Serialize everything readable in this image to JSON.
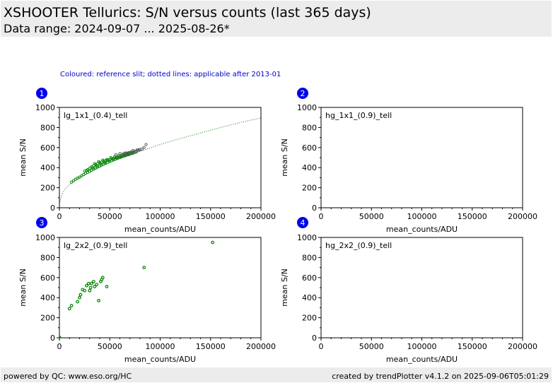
{
  "header": {
    "title": "XSHOOTER Tellurics: S/N versus counts (last 365 days)",
    "subtitle": "Data range: 2024-09-07 ... 2025-08-26*"
  },
  "note": "Coloured: reference slit; dotted lines: applicable after 2013-01",
  "footer": {
    "left": "powered by QC: www.eso.org/HC",
    "right": "created by trendPlotter v4.1.2 on 2025-09-06T05:01:29"
  },
  "colors": {
    "badge": "#0000ee",
    "reference": "#008000",
    "other": "#555555",
    "fit": "#008000"
  },
  "chart_data": [
    {
      "type": "scatter",
      "badge": "1",
      "panel_label": "lg_1x1_(0.4)_tell",
      "xlabel": "mean_counts/ADU",
      "ylabel": "mean S/N",
      "xlim": [
        0,
        200000
      ],
      "ylim": [
        0,
        1000
      ],
      "xticks": [
        0,
        50000,
        100000,
        150000,
        200000
      ],
      "yticks": [
        0,
        200,
        400,
        600,
        800,
        1000
      ],
      "marker": "small",
      "fit_curve": {
        "style": "dotted",
        "x": [
          200,
          2000,
          5000,
          10000,
          20000,
          30000,
          40000,
          50000,
          60000,
          80000,
          100000,
          120000,
          140000,
          160000,
          180000,
          200000
        ],
        "y": [
          40,
          120,
          180,
          230,
          300,
          360,
          410,
          450,
          490,
          560,
          630,
          690,
          745,
          800,
          850,
          895
        ]
      },
      "series": [
        {
          "name": "",
          "reference": true,
          "points": [
            [
              12000,
              255
            ],
            [
              14000,
              270
            ],
            [
              16000,
              285
            ],
            [
              18000,
              295
            ],
            [
              20000,
              305
            ],
            [
              22000,
              318
            ],
            [
              24000,
              330
            ],
            [
              26000,
              342
            ],
            [
              28000,
              352
            ],
            [
              30000,
              362
            ],
            [
              32000,
              375
            ],
            [
              34000,
              385
            ],
            [
              36000,
              395
            ],
            [
              38000,
              405
            ],
            [
              40000,
              415
            ],
            [
              42000,
              425
            ],
            [
              44000,
              435
            ],
            [
              46000,
              442
            ],
            [
              48000,
              452
            ],
            [
              50000,
              460
            ],
            [
              52000,
              468
            ],
            [
              54000,
              478
            ],
            [
              56000,
              485
            ],
            [
              58000,
              492
            ],
            [
              60000,
              500
            ],
            [
              62000,
              508
            ],
            [
              64000,
              515
            ],
            [
              66000,
              522
            ],
            [
              68000,
              528
            ],
            [
              70000,
              535
            ],
            [
              72000,
              540
            ],
            [
              74000,
              548
            ],
            [
              76000,
              555
            ],
            [
              28000,
              380
            ],
            [
              30000,
              395
            ],
            [
              32000,
              410
            ],
            [
              34000,
              420
            ],
            [
              36000,
              430
            ],
            [
              38000,
              440
            ],
            [
              40000,
              450
            ],
            [
              42000,
              455
            ],
            [
              44000,
              465
            ],
            [
              46000,
              470
            ],
            [
              48000,
              478
            ],
            [
              50000,
              482
            ],
            [
              52000,
              490
            ],
            [
              54000,
              495
            ],
            [
              56000,
              500
            ],
            [
              58000,
              505
            ],
            [
              60000,
              512
            ],
            [
              62000,
              518
            ],
            [
              64000,
              525
            ],
            [
              66000,
              530
            ],
            [
              68000,
              540
            ],
            [
              70000,
              548
            ],
            [
              25000,
              365
            ],
            [
              27000,
              372
            ],
            [
              33000,
              398
            ],
            [
              37000,
              418
            ],
            [
              41000,
              438
            ],
            [
              45000,
              452
            ],
            [
              49000,
              470
            ],
            [
              53000,
              484
            ],
            [
              57000,
              496
            ],
            [
              61000,
              505
            ],
            [
              65000,
              518
            ],
            [
              69000,
              530
            ],
            [
              73000,
              545
            ],
            [
              35000,
              440
            ],
            [
              39000,
              460
            ],
            [
              43000,
              475
            ],
            [
              47000,
              480
            ],
            [
              51000,
              500
            ],
            [
              55000,
              510
            ],
            [
              59000,
              520
            ],
            [
              63000,
              535
            ],
            [
              67000,
              545
            ],
            [
              71000,
              555
            ]
          ]
        },
        {
          "name": "",
          "reference": false,
          "points": [
            [
              62000,
              520
            ],
            [
              64000,
              530
            ],
            [
              66000,
              540
            ],
            [
              68000,
              535
            ],
            [
              70000,
              545
            ],
            [
              72000,
              552
            ],
            [
              74000,
              560
            ],
            [
              76000,
              565
            ],
            [
              78000,
              572
            ],
            [
              80000,
              578
            ],
            [
              82000,
              585
            ],
            [
              84000,
              600
            ],
            [
              86000,
              630
            ],
            [
              65000,
              545
            ],
            [
              69000,
              550
            ],
            [
              73000,
              570
            ],
            [
              77000,
              575
            ],
            [
              79000,
              580
            ],
            [
              60000,
              540
            ],
            [
              56000,
              530
            ]
          ]
        }
      ]
    },
    {
      "type": "scatter",
      "badge": "2",
      "panel_label": "hg_1x1_(0.9)_tell",
      "xlabel": "mean_counts/ADU",
      "ylabel": "mean S/N",
      "xlim": [
        0,
        200000
      ],
      "ylim": [
        0,
        1000
      ],
      "xticks": [
        0,
        50000,
        100000,
        150000,
        200000
      ],
      "yticks": [
        0,
        200,
        400,
        600,
        800,
        1000
      ],
      "marker": "small",
      "series": []
    },
    {
      "type": "scatter",
      "badge": "3",
      "panel_label": "lg_2x2_(0.9)_tell",
      "xlabel": "mean_counts/ADU",
      "ylabel": "mean S/N",
      "xlim": [
        0,
        200000
      ],
      "ylim": [
        0,
        1000
      ],
      "xticks": [
        0,
        50000,
        100000,
        150000,
        200000
      ],
      "yticks": [
        0,
        200,
        400,
        600,
        800,
        1000
      ],
      "marker": "circle",
      "series": [
        {
          "name": "",
          "reference": true,
          "points": [
            [
              0,
              5
            ],
            [
              10000,
              290
            ],
            [
              12000,
              320
            ],
            [
              18000,
              360
            ],
            [
              20000,
              400
            ],
            [
              21000,
              430
            ],
            [
              23000,
              480
            ],
            [
              25000,
              470
            ],
            [
              27000,
              520
            ],
            [
              29000,
              540
            ],
            [
              30000,
              470
            ],
            [
              31000,
              500
            ],
            [
              32000,
              540
            ],
            [
              34000,
              560
            ],
            [
              35000,
              510
            ],
            [
              37000,
              530
            ],
            [
              39000,
              370
            ],
            [
              41000,
              560
            ],
            [
              42000,
              580
            ],
            [
              43000,
              600
            ],
            [
              47000,
              510
            ],
            [
              84000,
              700
            ],
            [
              152000,
              950
            ]
          ]
        }
      ]
    },
    {
      "type": "scatter",
      "badge": "4",
      "panel_label": "hg_2x2_(0.9)_tell",
      "xlabel": "mean_counts/ADU",
      "ylabel": "mean S/N",
      "xlim": [
        0,
        200000
      ],
      "ylim": [
        0,
        1000
      ],
      "xticks": [
        0,
        50000,
        100000,
        150000,
        200000
      ],
      "yticks": [
        0,
        200,
        400,
        600,
        800,
        1000
      ],
      "marker": "small",
      "series": []
    }
  ]
}
